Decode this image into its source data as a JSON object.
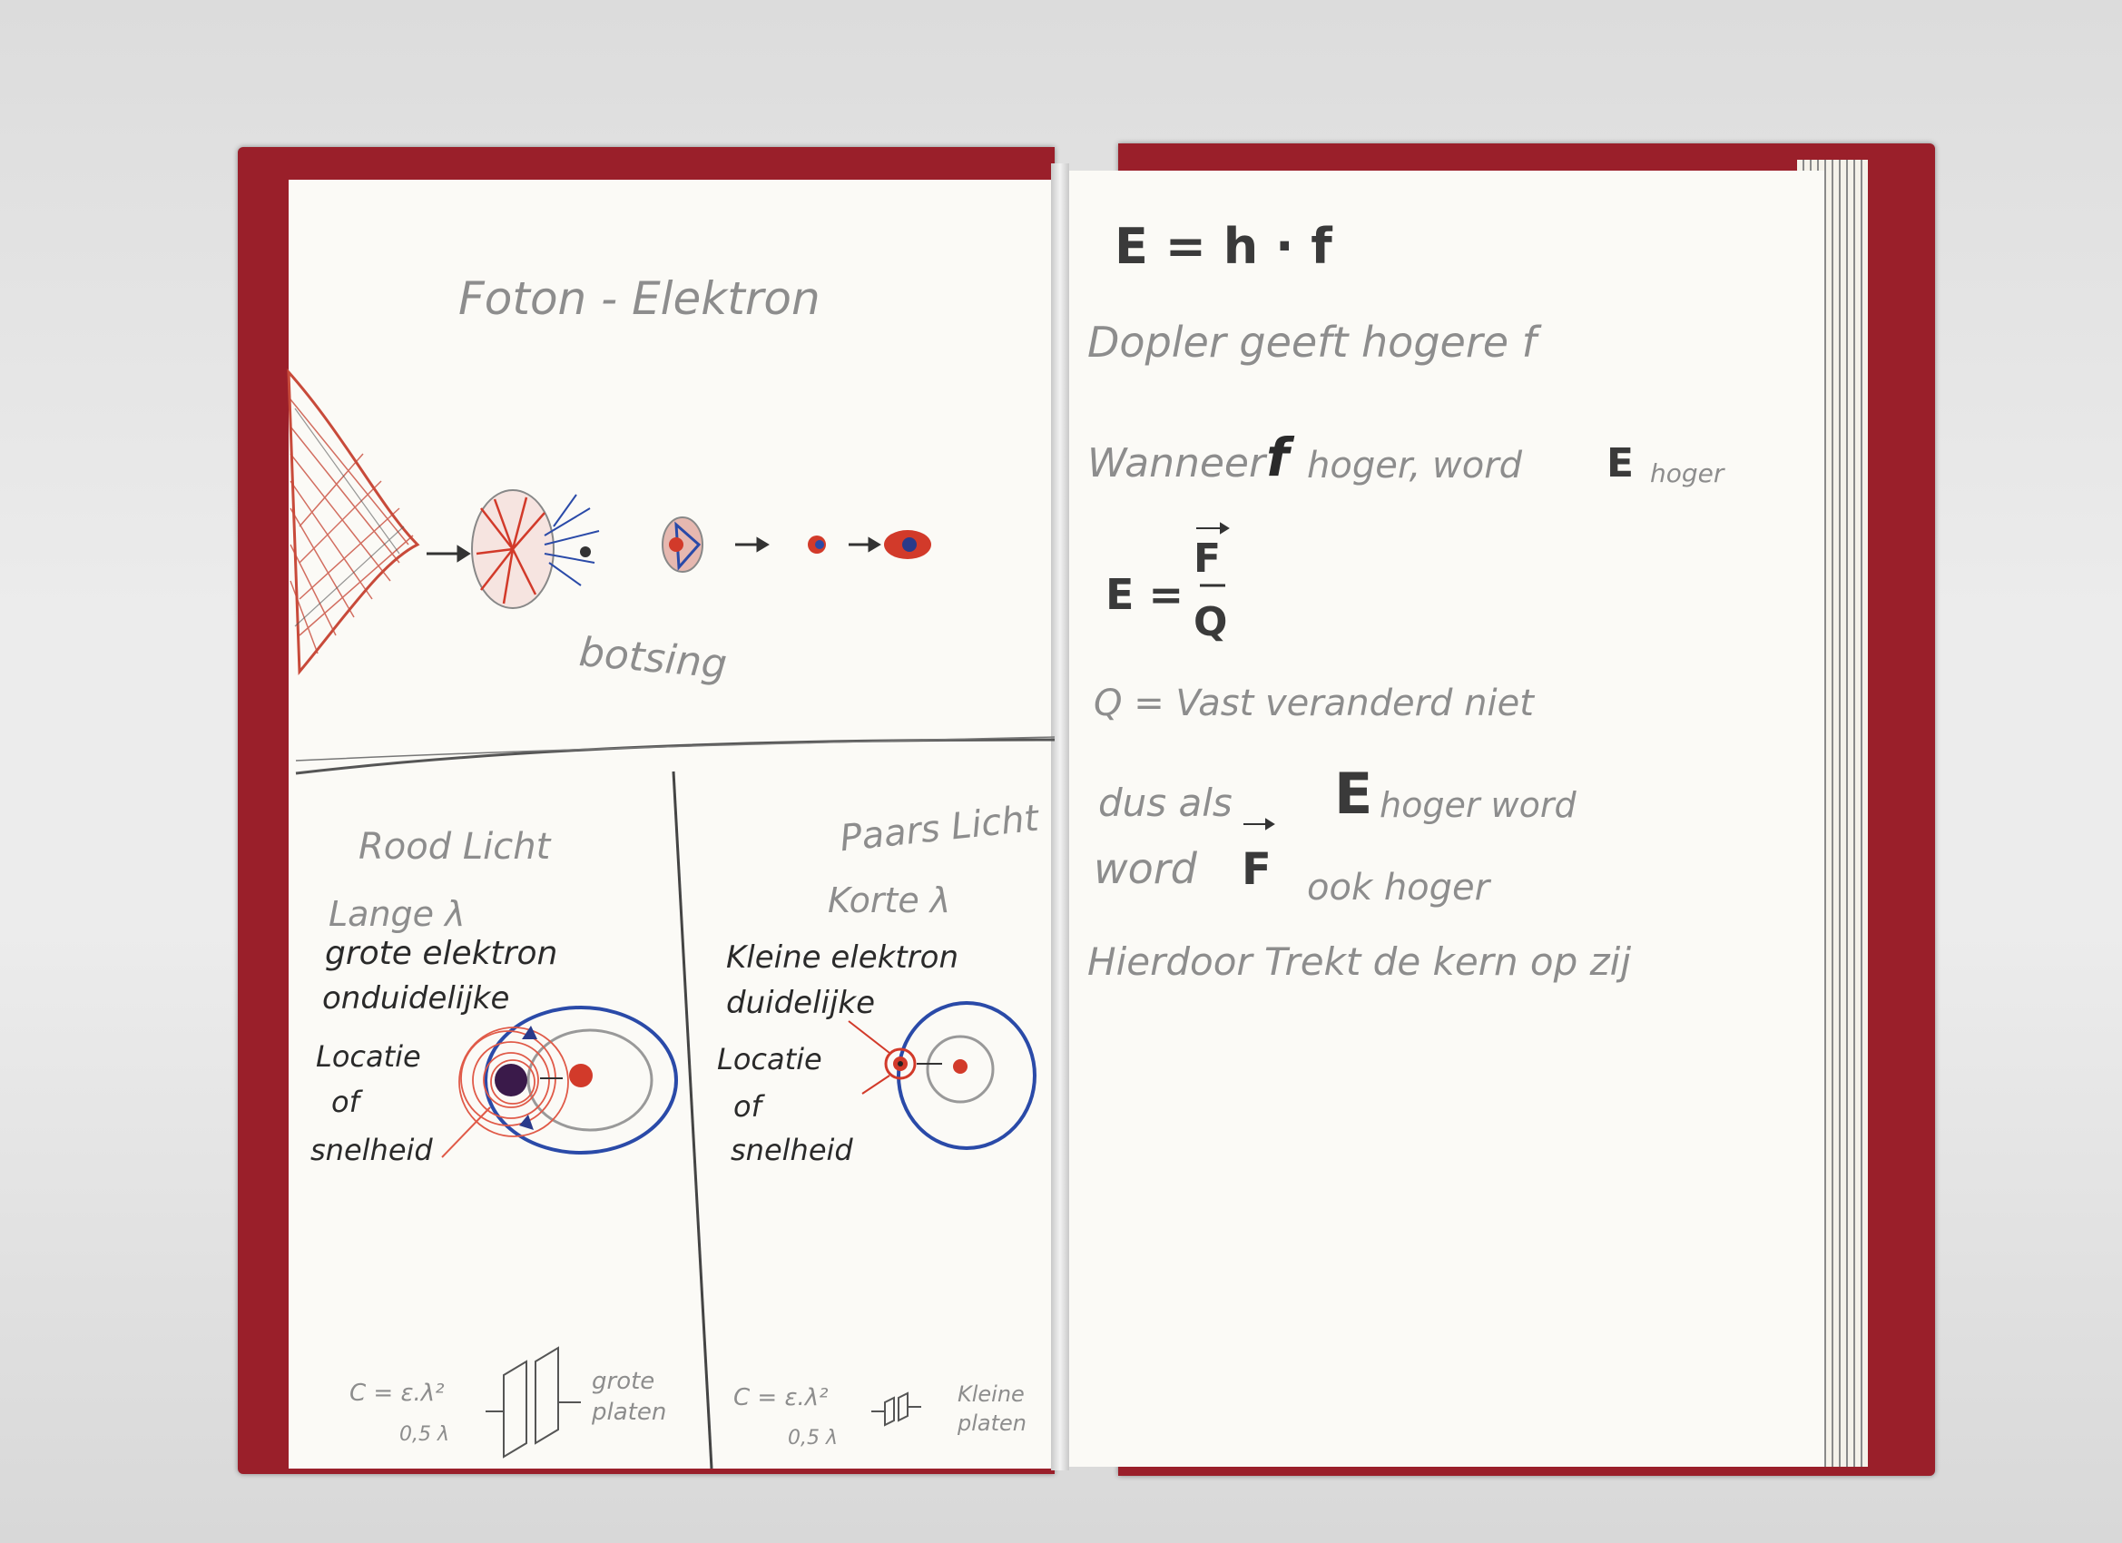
{
  "left_page": {
    "title": "Foton - Elektron",
    "collision_label": "botsing",
    "red_light": {
      "title": "Rood Licht",
      "wavelength": "Lange λ",
      "line1": "grote elektron",
      "line2": "onduidelijke",
      "line3": "Locatie",
      "line4": "of",
      "line5": "snelheid",
      "formula_top": "C = ε.λ²",
      "formula_bottom": "0,5 λ",
      "plates": "grote platen"
    },
    "purple_light": {
      "title": "Paars Licht",
      "wavelength": "Korte λ",
      "line1": "Kleine elektron",
      "line2": "duidelijke",
      "line3": "Locatie",
      "line4": "of",
      "line5": "snelheid",
      "formula_top": "C = ε.λ²",
      "formula_bottom": "0,5 λ",
      "plates": "Kleine platen"
    }
  },
  "right_page": {
    "line1": "E = h · f",
    "line2": "Dopler geeft hogere f",
    "line3_a": "Wanneer",
    "line3_f": "f",
    "line3_b": "hoger, word",
    "line3_E": "E",
    "line3_c": "hoger",
    "line4_E": "E =",
    "line4_num": "F",
    "line4_den": "Q",
    "line5": "Q = Vast veranderd niet",
    "line6_a": "dus als",
    "line6_E": "E",
    "line6_b": "hoger word",
    "line7_a": "word",
    "line7_F": "F",
    "line7_b": "ook hoger",
    "line8": "Hierdoor Trekt de kern op zij"
  },
  "colors": {
    "cover": "#9a1f2a",
    "paper": "#fbfaf6",
    "red_ink": "#d23a2a",
    "blue_ink": "#2a4aa8",
    "pencil": "#8d8d8d"
  }
}
